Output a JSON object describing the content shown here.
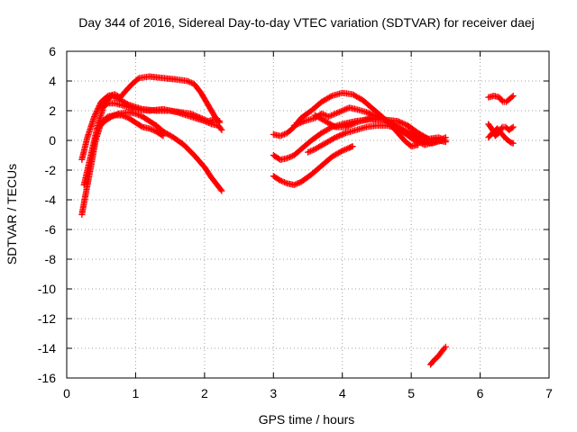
{
  "chart_data": {
    "type": "scatter",
    "title": "Day 344 of 2016, Sidereal Day-to-day VTEC variation (SDTVAR) for receiver daej",
    "xlabel": "GPS time / hours",
    "ylabel": "SDTVAR / TECUs",
    "xlim": [
      0,
      7
    ],
    "ylim": [
      -16,
      6
    ],
    "xticks": [
      0,
      1,
      2,
      3,
      4,
      5,
      6,
      7
    ],
    "yticks": [
      6,
      4,
      2,
      0,
      -2,
      -4,
      -6,
      -8,
      -10,
      -12,
      -14,
      -16
    ],
    "grid": true,
    "legend": "none",
    "marker": "+",
    "color": "#ff0000",
    "series": [
      {
        "name": "track-1",
        "points": [
          [
            0.22,
            -1.3
          ],
          [
            0.3,
            0.2
          ],
          [
            0.4,
            1.6
          ],
          [
            0.5,
            2.6
          ],
          [
            0.6,
            3.0
          ],
          [
            0.7,
            3.1
          ],
          [
            0.78,
            2.9
          ],
          [
            0.85,
            3.3
          ],
          [
            0.95,
            3.8
          ],
          [
            1.05,
            4.2
          ],
          [
            1.2,
            4.3
          ],
          [
            1.4,
            4.2
          ],
          [
            1.6,
            4.1
          ],
          [
            1.75,
            4.0
          ],
          [
            1.85,
            3.8
          ],
          [
            1.95,
            3.2
          ],
          [
            2.05,
            2.4
          ],
          [
            2.15,
            1.6
          ],
          [
            2.22,
            1.2
          ]
        ]
      },
      {
        "name": "track-2",
        "points": [
          [
            0.25,
            -3.0
          ],
          [
            0.35,
            -1.0
          ],
          [
            0.45,
            1.0
          ],
          [
            0.55,
            2.5
          ],
          [
            0.65,
            3.0
          ],
          [
            0.75,
            2.8
          ],
          [
            0.9,
            2.4
          ],
          [
            1.1,
            2.1
          ],
          [
            1.3,
            2.0
          ],
          [
            1.5,
            2.0
          ],
          [
            1.65,
            1.9
          ],
          [
            1.8,
            1.8
          ],
          [
            1.95,
            1.5
          ],
          [
            2.05,
            1.3
          ],
          [
            2.15,
            1.4
          ],
          [
            2.22,
            1.3
          ]
        ]
      },
      {
        "name": "track-3",
        "points": [
          [
            0.22,
            -5.0
          ],
          [
            0.28,
            -3.5
          ],
          [
            0.35,
            -1.8
          ],
          [
            0.42,
            0.0
          ],
          [
            0.5,
            1.2
          ],
          [
            0.6,
            1.6
          ],
          [
            0.7,
            1.7
          ],
          [
            0.8,
            1.7
          ],
          [
            0.9,
            1.5
          ],
          [
            1.0,
            1.2
          ],
          [
            1.1,
            0.9
          ],
          [
            1.2,
            0.8
          ],
          [
            1.3,
            0.6
          ],
          [
            1.4,
            0.3
          ]
        ]
      },
      {
        "name": "track-4",
        "points": [
          [
            0.45,
            0.8
          ],
          [
            0.55,
            1.3
          ],
          [
            0.65,
            1.6
          ],
          [
            0.75,
            1.8
          ],
          [
            0.9,
            1.9
          ],
          [
            1.0,
            1.8
          ],
          [
            1.1,
            1.6
          ],
          [
            1.2,
            1.3
          ],
          [
            1.3,
            1.0
          ],
          [
            1.4,
            0.6
          ],
          [
            1.55,
            0.2
          ],
          [
            1.7,
            -0.3
          ],
          [
            1.85,
            -1.0
          ],
          [
            2.0,
            -1.8
          ],
          [
            2.1,
            -2.5
          ],
          [
            2.2,
            -3.1
          ],
          [
            2.25,
            -3.4
          ]
        ]
      },
      {
        "name": "track-5",
        "points": [
          [
            0.5,
            2.2
          ],
          [
            0.6,
            2.5
          ],
          [
            0.7,
            2.5
          ],
          [
            0.85,
            2.3
          ],
          [
            1.0,
            2.1
          ],
          [
            1.2,
            2.0
          ],
          [
            1.4,
            2.1
          ],
          [
            1.6,
            1.9
          ],
          [
            1.8,
            1.6
          ],
          [
            2.0,
            1.3
          ],
          [
            2.1,
            1.1
          ],
          [
            2.2,
            1.0
          ],
          [
            2.25,
            0.7
          ]
        ]
      },
      {
        "name": "track-6",
        "points": [
          [
            3.0,
            0.4
          ],
          [
            3.1,
            0.3
          ],
          [
            3.2,
            0.5
          ],
          [
            3.3,
            0.9
          ],
          [
            3.4,
            1.5
          ],
          [
            3.55,
            2.0
          ],
          [
            3.7,
            2.6
          ],
          [
            3.85,
            3.0
          ],
          [
            4.0,
            3.2
          ],
          [
            4.15,
            3.1
          ],
          [
            4.3,
            2.7
          ],
          [
            4.45,
            2.1
          ],
          [
            4.6,
            1.5
          ],
          [
            4.75,
            0.8
          ],
          [
            4.9,
            0.0
          ],
          [
            5.0,
            -0.4
          ],
          [
            5.1,
            -0.3
          ]
        ]
      },
      {
        "name": "track-7",
        "points": [
          [
            3.0,
            -1.0
          ],
          [
            3.1,
            -1.3
          ],
          [
            3.2,
            -1.2
          ],
          [
            3.3,
            -1.0
          ],
          [
            3.4,
            -0.6
          ],
          [
            3.55,
            0.0
          ],
          [
            3.7,
            0.5
          ],
          [
            3.85,
            0.9
          ],
          [
            4.0,
            1.1
          ],
          [
            4.2,
            1.3
          ],
          [
            4.4,
            1.4
          ],
          [
            4.6,
            1.4
          ],
          [
            4.8,
            1.3
          ],
          [
            4.95,
            1.0
          ],
          [
            5.1,
            0.5
          ],
          [
            5.25,
            0.1
          ],
          [
            5.4,
            0.0
          ],
          [
            5.5,
            -0.1
          ]
        ]
      },
      {
        "name": "track-8",
        "points": [
          [
            3.0,
            -2.4
          ],
          [
            3.1,
            -2.7
          ],
          [
            3.2,
            -2.9
          ],
          [
            3.3,
            -3.0
          ],
          [
            3.4,
            -2.8
          ],
          [
            3.55,
            -2.3
          ],
          [
            3.7,
            -1.7
          ],
          [
            3.85,
            -1.1
          ],
          [
            4.0,
            -0.7
          ],
          [
            4.1,
            -0.5
          ],
          [
            4.15,
            -0.4
          ]
        ]
      },
      {
        "name": "track-9",
        "points": [
          [
            3.3,
            1.0
          ],
          [
            3.45,
            1.3
          ],
          [
            3.6,
            1.5
          ],
          [
            3.7,
            1.8
          ],
          [
            3.8,
            1.6
          ],
          [
            3.9,
            1.8
          ],
          [
            4.0,
            2.0
          ],
          [
            4.1,
            2.2
          ],
          [
            4.2,
            2.1
          ],
          [
            4.35,
            1.9
          ],
          [
            4.5,
            1.6
          ],
          [
            4.7,
            1.2
          ],
          [
            4.85,
            0.8
          ],
          [
            5.0,
            0.3
          ],
          [
            5.15,
            0.0
          ],
          [
            5.3,
            -0.2
          ],
          [
            5.45,
            0.0
          ]
        ]
      },
      {
        "name": "track-10",
        "points": [
          [
            3.5,
            -0.8
          ],
          [
            3.6,
            -0.6
          ],
          [
            3.75,
            -0.2
          ],
          [
            3.9,
            0.2
          ],
          [
            4.05,
            0.5
          ],
          [
            4.2,
            0.7
          ],
          [
            4.35,
            0.9
          ],
          [
            4.5,
            1.0
          ],
          [
            4.65,
            1.0
          ],
          [
            4.8,
            0.8
          ],
          [
            4.95,
            0.6
          ],
          [
            5.1,
            0.3
          ],
          [
            5.25,
            0.1
          ],
          [
            5.4,
            0.2
          ],
          [
            5.5,
            0.0
          ]
        ]
      },
      {
        "name": "track-11",
        "points": [
          [
            3.6,
            1.7
          ],
          [
            3.75,
            1.3
          ],
          [
            3.9,
            0.9
          ],
          [
            4.05,
            0.9
          ],
          [
            4.2,
            1.2
          ],
          [
            4.4,
            1.5
          ],
          [
            4.6,
            1.4
          ],
          [
            4.75,
            1.0
          ],
          [
            4.9,
            0.5
          ],
          [
            5.05,
            0.0
          ],
          [
            5.2,
            -0.3
          ],
          [
            5.35,
            -0.1
          ],
          [
            5.5,
            0.2
          ]
        ]
      },
      {
        "name": "track-12",
        "points": [
          [
            5.28,
            -15.1
          ],
          [
            5.33,
            -14.8
          ],
          [
            5.38,
            -14.6
          ],
          [
            5.43,
            -14.3
          ],
          [
            5.48,
            -14.0
          ],
          [
            5.5,
            -13.9
          ]
        ]
      },
      {
        "name": "track-13",
        "points": [
          [
            6.12,
            2.9
          ],
          [
            6.2,
            3.0
          ],
          [
            6.28,
            2.9
          ],
          [
            6.33,
            2.6
          ],
          [
            6.38,
            2.6
          ],
          [
            6.43,
            2.8
          ],
          [
            6.48,
            3.0
          ]
        ]
      },
      {
        "name": "track-14",
        "points": [
          [
            6.12,
            1.1
          ],
          [
            6.18,
            0.7
          ],
          [
            6.22,
            0.3
          ],
          [
            6.27,
            0.5
          ],
          [
            6.32,
            0.9
          ],
          [
            6.37,
            0.9
          ],
          [
            6.42,
            0.7
          ],
          [
            6.48,
            0.9
          ]
        ]
      },
      {
        "name": "track-15",
        "points": [
          [
            6.12,
            0.2
          ],
          [
            6.18,
            0.5
          ],
          [
            6.25,
            0.8
          ],
          [
            6.32,
            0.4
          ],
          [
            6.38,
            0.1
          ],
          [
            6.43,
            -0.1
          ],
          [
            6.48,
            -0.2
          ]
        ]
      }
    ]
  }
}
